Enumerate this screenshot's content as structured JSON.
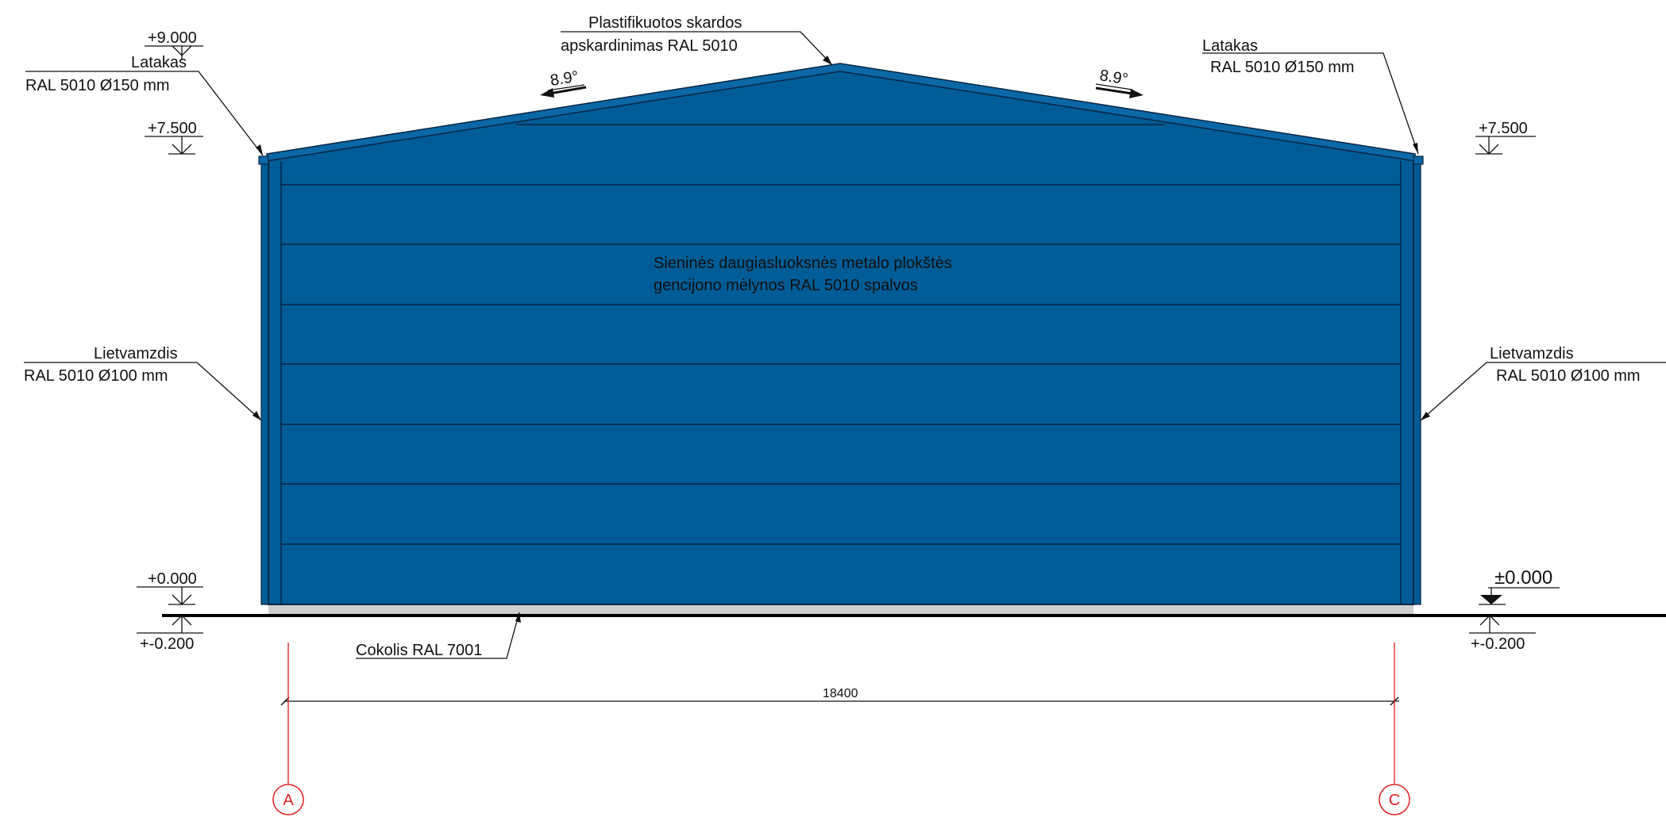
{
  "colors": {
    "wall": "#005c96",
    "wall_edge": "#0a2540",
    "roof_edge": "#0b67a6",
    "plinth": "#cfcfcf",
    "ground": "#000000",
    "axis": "#e02020"
  },
  "roof": {
    "note_line1": "Plastifikuotos skardos",
    "note_line2": "apskardinimas RAL 5010",
    "slope_left": "8.9°",
    "slope_right": "8.9°"
  },
  "gutter_left": {
    "line1": "Latakas",
    "line2": "RAL 5010 Ø150 mm"
  },
  "gutter_right": {
    "line1": "Latakas",
    "line2": "RAL 5010 Ø150 mm"
  },
  "downpipe_left": {
    "line1": "Lietvamzdis",
    "line2": "RAL 5010 Ø100 mm"
  },
  "downpipe_right": {
    "line1": "Lietvamzdis",
    "line2": "RAL 5010 Ø100 mm"
  },
  "wall_note": {
    "line1": "Sieninės daugiasluoksnės metalo plokštės",
    "line2": "gencijono mėlynos RAL 5010 spalvos"
  },
  "plinth": {
    "label": "Cokolis RAL 7001"
  },
  "levels": {
    "ridge": "+9.000",
    "eave_left": "+7.500",
    "eave_right": "+7.500",
    "floor_left": "+0.000",
    "floor_right": "±0.000",
    "ground_left": "+-0.200",
    "ground_right": "+-0.200"
  },
  "dimension": {
    "span": "18400"
  },
  "axes": {
    "left": "A",
    "right": "C"
  }
}
